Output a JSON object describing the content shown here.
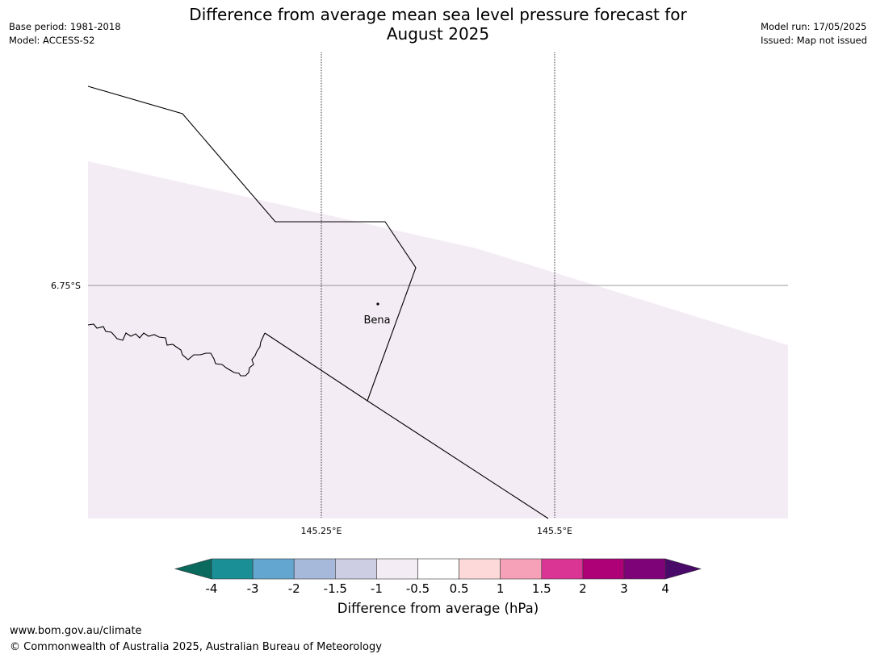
{
  "header": {
    "title_line1": "Difference from average mean sea level pressure forecast for",
    "title_line2": "August 2025",
    "base_period": "Base period: 1981-2018",
    "model": "Model: ACCESS-S2",
    "model_run": "Model run: 17/05/2025",
    "issued": "Issued: Map not issued"
  },
  "map": {
    "lat_label": "6.75°S",
    "lon_labels": [
      "145.25°E",
      "145.5°E"
    ],
    "place": "Bena",
    "shading_color": "#f4ecf4"
  },
  "colorbar": {
    "label": "Difference from average (hPa)",
    "ticks": [
      "-4",
      "-3",
      "-2",
      "-1.5",
      "-1",
      "-0.5",
      "0.5",
      "1",
      "1.5",
      "2",
      "3",
      "4"
    ],
    "colors": [
      "#1b8f96",
      "#63a6cf",
      "#a7b9da",
      "#cdcde3",
      "#f4ecf4",
      "#ffffff",
      "#fdd9d9",
      "#f7a1b8",
      "#da3595",
      "#ae0077",
      "#7f0378"
    ],
    "extend_low_color": "#0b6a5e",
    "extend_high_color": "#4a0a6a"
  },
  "footer": {
    "url": "www.bom.gov.au/climate",
    "copyright": "© Commonwealth of Australia 2025, Australian Bureau of Meteorology"
  }
}
